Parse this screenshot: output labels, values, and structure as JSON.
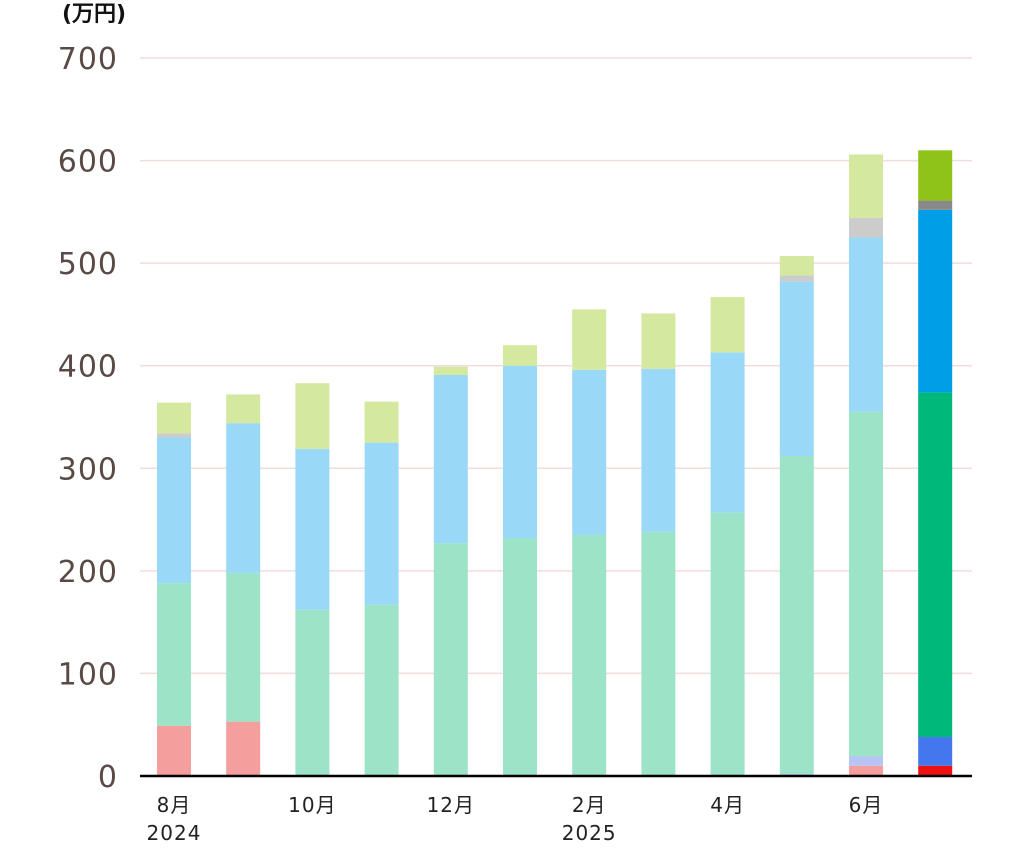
{
  "chart_data": {
    "type": "bar",
    "stacked": true,
    "unit": "(万円)",
    "ylim": [
      0,
      700
    ],
    "yticks": [
      0,
      100,
      200,
      300,
      400,
      500,
      600,
      700
    ],
    "xtick_labels": [
      {
        "index": 0,
        "lines": [
          "8月",
          "2024"
        ]
      },
      {
        "index": 2,
        "lines": [
          "10月"
        ]
      },
      {
        "index": 4,
        "lines": [
          "12月"
        ]
      },
      {
        "index": 6,
        "lines": [
          "2月",
          "2025"
        ]
      },
      {
        "index": 8,
        "lines": [
          "4月"
        ]
      },
      {
        "index": 10,
        "lines": [
          "6月"
        ]
      }
    ],
    "categories_count": 12,
    "grid": true,
    "bars": [
      {
        "segments": [
          {
            "value": 49,
            "color": "#f49e9e"
          },
          {
            "value": 139,
            "color": "#9ce3c8"
          },
          {
            "value": 142,
            "color": "#9ad8f8"
          },
          {
            "value": 4,
            "color": "#cccccc"
          },
          {
            "value": 30,
            "color": "#d4e8a0"
          }
        ]
      },
      {
        "segments": [
          {
            "value": 53,
            "color": "#f49e9e"
          },
          {
            "value": 145,
            "color": "#9ce3c8"
          },
          {
            "value": 146,
            "color": "#9ad8f8"
          },
          {
            "value": 28,
            "color": "#d4e8a0"
          }
        ]
      },
      {
        "segments": [
          {
            "value": 162,
            "color": "#9ce3c8"
          },
          {
            "value": 157,
            "color": "#9ad8f8"
          },
          {
            "value": 64,
            "color": "#d4e8a0"
          }
        ]
      },
      {
        "segments": [
          {
            "value": 167,
            "color": "#9ce3c8"
          },
          {
            "value": 158,
            "color": "#9ad8f8"
          },
          {
            "value": 40,
            "color": "#d4e8a0"
          }
        ]
      },
      {
        "segments": [
          {
            "value": 227,
            "color": "#9ce3c8"
          },
          {
            "value": 164,
            "color": "#9ad8f8"
          },
          {
            "value": 8,
            "color": "#d4e8a0"
          }
        ]
      },
      {
        "segments": [
          {
            "value": 232,
            "color": "#9ce3c8"
          },
          {
            "value": 168,
            "color": "#9ad8f8"
          },
          {
            "value": 20,
            "color": "#d4e8a0"
          }
        ]
      },
      {
        "segments": [
          {
            "value": 235,
            "color": "#9ce3c8"
          },
          {
            "value": 161,
            "color": "#9ad8f8"
          },
          {
            "value": 59,
            "color": "#d4e8a0"
          }
        ]
      },
      {
        "segments": [
          {
            "value": 238,
            "color": "#9ce3c8"
          },
          {
            "value": 159,
            "color": "#9ad8f8"
          },
          {
            "value": 54,
            "color": "#d4e8a0"
          }
        ]
      },
      {
        "segments": [
          {
            "value": 257,
            "color": "#9ce3c8"
          },
          {
            "value": 156,
            "color": "#9ad8f8"
          },
          {
            "value": 54,
            "color": "#d4e8a0"
          }
        ]
      },
      {
        "segments": [
          {
            "value": 2,
            "color": "#b8c4f8"
          },
          {
            "value": 310,
            "color": "#9ce3c8"
          },
          {
            "value": 170,
            "color": "#9ad8f8"
          },
          {
            "value": 6,
            "color": "#cccccc"
          },
          {
            "value": 19,
            "color": "#d4e8a0"
          }
        ]
      },
      {
        "segments": [
          {
            "value": 10,
            "color": "#f49e9e"
          },
          {
            "value": 9,
            "color": "#b8c4f8"
          },
          {
            "value": 336,
            "color": "#9ce3c8"
          },
          {
            "value": 170,
            "color": "#9ad8f8"
          },
          {
            "value": 19,
            "color": "#cccccc"
          },
          {
            "value": 62,
            "color": "#d4e8a0"
          }
        ]
      },
      {
        "segments": [
          {
            "value": 10,
            "color": "#ee1111"
          },
          {
            "value": 28,
            "color": "#4477ee"
          },
          {
            "value": 336,
            "color": "#00b87a"
          },
          {
            "value": 178,
            "color": "#009ee6"
          },
          {
            "value": 9,
            "color": "#888888"
          },
          {
            "value": 49,
            "color": "#8fc31a"
          }
        ]
      }
    ]
  },
  "colors": {
    "axis_text": "#5a4a46",
    "gridline": "#f2dcdc",
    "baseline": "#000000"
  }
}
